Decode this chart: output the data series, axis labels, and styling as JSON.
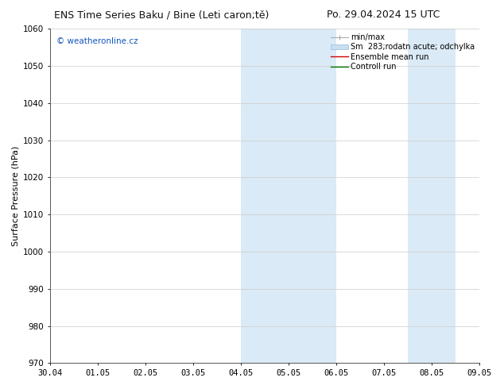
{
  "title_left": "ENS Time Series Baku / Bine (Leti caron;tě)",
  "title_right": "Po. 29.04.2024 15 UTC",
  "ylabel": "Surface Pressure (hPa)",
  "ylim": [
    970,
    1060
  ],
  "yticks": [
    970,
    980,
    990,
    1000,
    1010,
    1020,
    1030,
    1040,
    1050,
    1060
  ],
  "xtick_labels": [
    "30.04",
    "01.05",
    "02.05",
    "03.05",
    "04.05",
    "05.05",
    "06.05",
    "07.05",
    "08.05",
    "09.05"
  ],
  "n_xticks": 10,
  "xlim_min": 0,
  "xlim_max": 9,
  "shade_regions": [
    {
      "xmin": 4.0,
      "xmax": 6.0,
      "color": "#daeaf6"
    },
    {
      "xmin": 7.5,
      "xmax": 8.5,
      "color": "#daeaf6"
    }
  ],
  "watermark_text": "© weatheronline.cz",
  "watermark_color": "#1155bb",
  "background_color": "#ffffff",
  "grid_color": "#cccccc",
  "title_fontsize": 9,
  "axis_label_fontsize": 8,
  "tick_fontsize": 7.5,
  "watermark_fontsize": 7.5,
  "legend_fontsize": 7,
  "legend_label1": "min/max",
  "legend_label2": "Sm  283;rodatn acute; odchylka",
  "legend_label3": "Ensemble mean run",
  "legend_label4": "Controll run",
  "legend_color1": "#aaaaaa",
  "legend_color2": "#c8dff0",
  "legend_color3": "#cc0000",
  "legend_color4": "#007700"
}
